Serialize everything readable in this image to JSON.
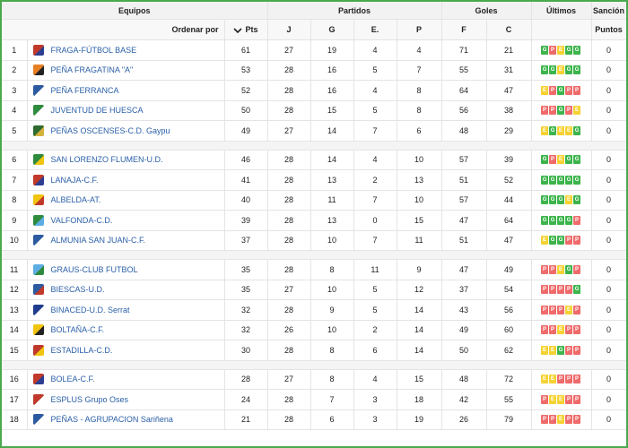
{
  "headers": {
    "equipos": "Equipos",
    "partidos": "Partidos",
    "goles": "Goles",
    "ultimos": "Últimos",
    "sancion": "Sanción",
    "ordenar": "Ordenar por",
    "pts": "Pts",
    "j": "J",
    "g": "G",
    "e": "E.",
    "p": "P",
    "f": "F",
    "c": "C",
    "puntos": "Puntos"
  },
  "colors": {
    "win": "#3cb44b",
    "draw": "#f5d232",
    "loss": "#ef6b6b",
    "link": "#2a5fa8",
    "border": "#4aa84f"
  },
  "groups": [
    [
      {
        "pos": "1",
        "team": "FRAGA-FÚTBOL BASE",
        "pts": "61",
        "j": "27",
        "g": "19",
        "e": "4",
        "p": "4",
        "f": "71",
        "c": "21",
        "last": [
          "G",
          "P",
          "E",
          "G",
          "G"
        ],
        "sancion": "0",
        "badge": [
          "#c0392b",
          "#2c3e90"
        ]
      },
      {
        "pos": "2",
        "team": "PEÑA FRAGATINA \"A\"",
        "pts": "53",
        "j": "28",
        "g": "16",
        "e": "5",
        "p": "7",
        "f": "55",
        "c": "31",
        "last": [
          "G",
          "G",
          "E",
          "G",
          "G"
        ],
        "sancion": "0",
        "badge": [
          "#e67e22",
          "#222222"
        ]
      },
      {
        "pos": "3",
        "team": "PEÑA FERRANCA",
        "pts": "52",
        "j": "28",
        "g": "16",
        "e": "4",
        "p": "8",
        "f": "64",
        "c": "47",
        "last": [
          "E",
          "P",
          "G",
          "P",
          "P"
        ],
        "sancion": "0",
        "badge": [
          "#2c5aa0",
          "#ffffff"
        ]
      },
      {
        "pos": "4",
        "team": "JUVENTUD DE HUESCA",
        "pts": "50",
        "j": "28",
        "g": "15",
        "e": "5",
        "p": "8",
        "f": "56",
        "c": "38",
        "last": [
          "P",
          "P",
          "G",
          "P",
          "E"
        ],
        "sancion": "0",
        "badge": [
          "#2e8b3d",
          "#ffffff"
        ]
      },
      {
        "pos": "5",
        "team": "PEÑAS OSCENSES-C.D. Gaypu",
        "pts": "49",
        "j": "27",
        "g": "14",
        "e": "7",
        "p": "6",
        "f": "48",
        "c": "29",
        "last": [
          "E",
          "G",
          "E",
          "E",
          "G"
        ],
        "sancion": "0",
        "badge": [
          "#2e6b2e",
          "#d4b23a"
        ]
      }
    ],
    [
      {
        "pos": "6",
        "team": "SAN LORENZO FLUMEN-U.D.",
        "pts": "46",
        "j": "28",
        "g": "14",
        "e": "4",
        "p": "10",
        "f": "57",
        "c": "39",
        "last": [
          "G",
          "P",
          "E",
          "G",
          "G"
        ],
        "sancion": "0",
        "badge": [
          "#2e8b3d",
          "#f1c40f"
        ]
      },
      {
        "pos": "7",
        "team": "LANAJA-C.F.",
        "pts": "41",
        "j": "28",
        "g": "13",
        "e": "2",
        "p": "13",
        "f": "51",
        "c": "52",
        "last": [
          "G",
          "G",
          "G",
          "G",
          "G"
        ],
        "sancion": "0",
        "badge": [
          "#c0392b",
          "#2c3e90"
        ]
      },
      {
        "pos": "8",
        "team": "ALBELDA-AT.",
        "pts": "40",
        "j": "28",
        "g": "11",
        "e": "7",
        "p": "10",
        "f": "57",
        "c": "44",
        "last": [
          "G",
          "G",
          "G",
          "E",
          "G"
        ],
        "sancion": "0",
        "badge": [
          "#f1c40f",
          "#c0392b"
        ]
      },
      {
        "pos": "9",
        "team": "VALFONDA-C.D.",
        "pts": "39",
        "j": "28",
        "g": "13",
        "e": "0",
        "p": "15",
        "f": "47",
        "c": "64",
        "last": [
          "G",
          "G",
          "G",
          "G",
          "P"
        ],
        "sancion": "0",
        "badge": [
          "#2e8b3d",
          "#5dade2"
        ]
      },
      {
        "pos": "10",
        "team": "ALMUNIA SAN JUAN-C.F.",
        "pts": "37",
        "j": "28",
        "g": "10",
        "e": "7",
        "p": "11",
        "f": "51",
        "c": "47",
        "last": [
          "E",
          "G",
          "G",
          "P",
          "P"
        ],
        "sancion": "0",
        "badge": [
          "#2c5aa0",
          "#ffffff"
        ]
      }
    ],
    [
      {
        "pos": "11",
        "team": "GRAUS-CLUB FUTBOL",
        "pts": "35",
        "j": "28",
        "g": "8",
        "e": "11",
        "p": "9",
        "f": "47",
        "c": "49",
        "last": [
          "P",
          "P",
          "E",
          "G",
          "P"
        ],
        "sancion": "0",
        "badge": [
          "#5dade2",
          "#2e8b3d"
        ]
      },
      {
        "pos": "12",
        "team": "BIESCAS-U.D.",
        "pts": "35",
        "j": "27",
        "g": "10",
        "e": "5",
        "p": "12",
        "f": "37",
        "c": "54",
        "last": [
          "P",
          "P",
          "P",
          "P",
          "G"
        ],
        "sancion": "0",
        "badge": [
          "#2c5aa0",
          "#c0392b"
        ]
      },
      {
        "pos": "13",
        "team": "BINACED-U.D. Serrat",
        "pts": "32",
        "j": "28",
        "g": "9",
        "e": "5",
        "p": "14",
        "f": "43",
        "c": "56",
        "last": [
          "P",
          "P",
          "P",
          "E",
          "P"
        ],
        "sancion": "0",
        "badge": [
          "#1f3d8f",
          "#ffffff"
        ]
      },
      {
        "pos": "14",
        "team": "BOLTAÑA-C.F.",
        "pts": "32",
        "j": "26",
        "g": "10",
        "e": "2",
        "p": "14",
        "f": "49",
        "c": "60",
        "last": [
          "P",
          "P",
          "E",
          "P",
          "P"
        ],
        "sancion": "0",
        "badge": [
          "#f1c40f",
          "#222222"
        ]
      },
      {
        "pos": "15",
        "team": "ESTADILLA-C.D.",
        "pts": "30",
        "j": "28",
        "g": "8",
        "e": "6",
        "p": "14",
        "f": "50",
        "c": "62",
        "last": [
          "E",
          "E",
          "G",
          "P",
          "P"
        ],
        "sancion": "0",
        "badge": [
          "#c0392b",
          "#f1c40f"
        ]
      }
    ],
    [
      {
        "pos": "16",
        "team": "BOLEA-C.F.",
        "pts": "28",
        "j": "27",
        "g": "8",
        "e": "4",
        "p": "15",
        "f": "48",
        "c": "72",
        "last": [
          "E",
          "E",
          "P",
          "P",
          "P"
        ],
        "sancion": "0",
        "badge": [
          "#c0392b",
          "#2c3e90"
        ]
      },
      {
        "pos": "17",
        "team": "ESPLUS Grupo Oses",
        "pts": "24",
        "j": "28",
        "g": "7",
        "e": "3",
        "p": "18",
        "f": "42",
        "c": "55",
        "last": [
          "P",
          "E",
          "E",
          "P",
          "P"
        ],
        "sancion": "0",
        "badge": [
          "#c0392b",
          "#ffffff"
        ]
      },
      {
        "pos": "18",
        "team": "PEÑAS - AGRUPACION Sariñena",
        "pts": "21",
        "j": "28",
        "g": "6",
        "e": "3",
        "p": "19",
        "f": "26",
        "c": "79",
        "last": [
          "P",
          "P",
          "E",
          "P",
          "P"
        ],
        "sancion": "0",
        "badge": [
          "#2c5aa0",
          "#ffffff"
        ]
      }
    ]
  ]
}
